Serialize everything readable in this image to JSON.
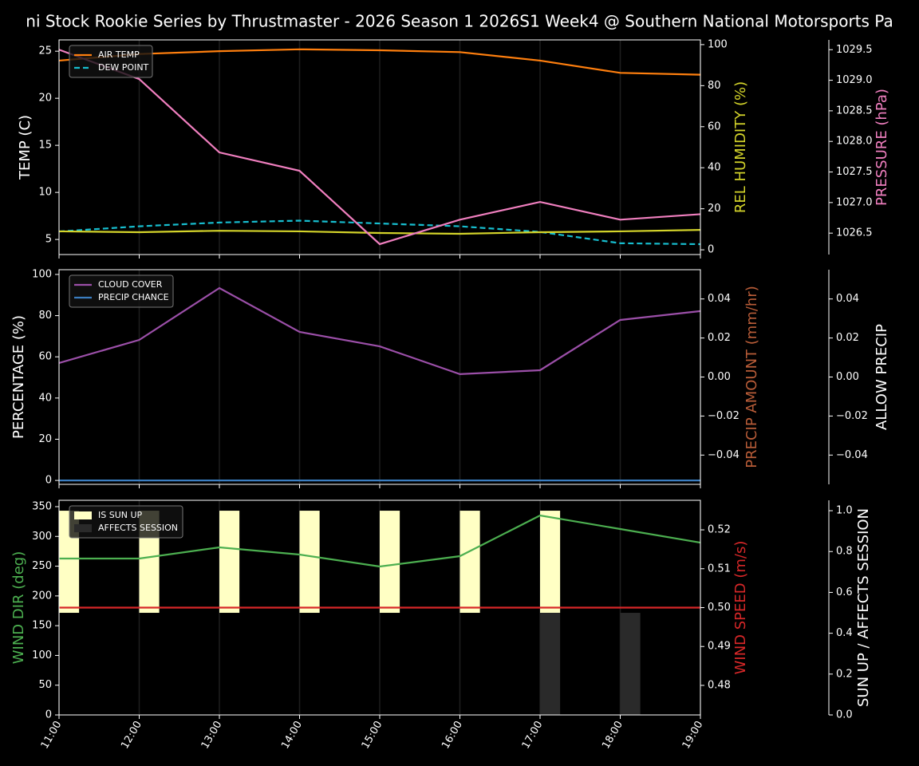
{
  "chart_data": [
    {
      "type": "line",
      "title": "ni Stock Rookie Series by Thrustmaster - 2026 Season 1 2026S1 Week4 @ Southern National Motorsports Pa",
      "y_label": "TEMP (C)",
      "y2_label": "REL HUMIDITY (%)",
      "y3_label": "PRESSURE (hPa)",
      "y_label_color": "#ffffff",
      "y2_label_color": "#d4d42a",
      "y3_label_color": "#f07fbf",
      "ylim": [
        3.4,
        26.2
      ],
      "yticks": [
        5,
        10,
        15,
        20,
        25
      ],
      "y2lim": [
        -2.3,
        102.3
      ],
      "y2ticks": [
        0,
        20,
        40,
        60,
        80,
        100
      ],
      "y3lim": [
        1026.15,
        1029.66
      ],
      "y3ticks": [
        1026.5,
        {
          "value": 1027,
          "label": "1027.0"
        },
        1027.5,
        {
          "value": 1028,
          "label": "1028.0"
        },
        1028.5,
        {
          "value": 1029,
          "label": "1029.0"
        },
        1029.5
      ],
      "legend": "upper left",
      "series": [
        {
          "name": "AIR TEMP",
          "color": "#ff7f0e",
          "axis": "y",
          "values": [
            24.0,
            24.7,
            25.0,
            25.2,
            25.1,
            24.9,
            24.0,
            22.7,
            22.5
          ]
        },
        {
          "name": "DEW POINT",
          "color": "#17becf",
          "axis": "y",
          "dashed": true,
          "values": [
            5.85,
            6.4,
            6.8,
            7.0,
            6.7,
            6.4,
            5.8,
            4.6,
            4.5
          ]
        },
        {
          "color": "#d4d42a",
          "axis": "y2",
          "values": [
            9.0,
            8.6,
            9.3,
            9.0,
            8.2,
            7.8,
            8.6,
            9.0,
            9.7
          ]
        },
        {
          "color": "#f07fbf",
          "axis": "y3",
          "values": [
            1029.5,
            1029.02,
            1027.82,
            1027.52,
            1026.32,
            1026.72,
            1027.01,
            1026.72,
            1026.81
          ]
        }
      ]
    },
    {
      "type": "line",
      "y_label": "PERCENTAGE (%)",
      "y2_label": "PRECIP AMOUNT (mm/hr)",
      "y3_label": "ALLOW PRECIP",
      "y_label_color": "#ffffff",
      "y2_label_color": "#b85c38",
      "y3_label_color": "#ffffff",
      "ylim": [
        -1.9,
        102.3
      ],
      "yticks": [
        0,
        20,
        40,
        60,
        80,
        100
      ],
      "y2lim": [
        -0.055,
        0.055
      ],
      "y2ticks": [
        {
          "value": -0.04,
          "label": "−0.04"
        },
        {
          "value": -0.02,
          "label": "−0.02"
        },
        {
          "value": 0,
          "label": "0.00"
        },
        0.02,
        0.04
      ],
      "y3lim": [
        -0.055,
        0.055
      ],
      "y3ticks": [
        {
          "value": -0.04,
          "label": "−0.04"
        },
        {
          "value": -0.02,
          "label": "−0.02"
        },
        {
          "value": 0,
          "label": "0.00"
        },
        0.02,
        0.04
      ],
      "legend": "upper left",
      "series": [
        {
          "name": "CLOUD COVER",
          "color": "#9b4fa8",
          "axis": "y",
          "values": [
            57,
            68.2,
            93.4,
            72.1,
            65.1,
            51.6,
            53.5,
            77.9,
            82.2
          ]
        },
        {
          "name": "PRECIP CHANCE",
          "color": "#3b7dc0",
          "axis": "y",
          "values": [
            0,
            0,
            0,
            0,
            0,
            0,
            0,
            0,
            0
          ]
        }
      ]
    },
    {
      "type": "line",
      "categories": [
        "11:00",
        "12:00",
        "13:00",
        "14:00",
        "15:00",
        "16:00",
        "17:00",
        "18:00",
        "19:00"
      ],
      "y_label": "WIND DIR (deg)",
      "y2_label": "WIND SPEED (m/s)",
      "y3_label": "SUN UP / AFFECTS SESSION",
      "y_label_color": "#4caf50",
      "y2_label_color": "#d62728",
      "y3_label_color": "#ffffff",
      "ylim": [
        0,
        360.7
      ],
      "yticks": [
        0,
        50,
        100,
        150,
        200,
        250,
        300,
        350
      ],
      "y2lim": [
        0.4724,
        0.5276
      ],
      "y2ticks": [
        0.48,
        0.49,
        {
          "value": 0.5,
          "label": "0.50"
        },
        0.51,
        0.52
      ],
      "y3lim": [
        0,
        1.051
      ],
      "y3ticks": [
        {
          "value": 0,
          "label": "0.0"
        },
        0.2,
        0.4,
        0.6,
        0.8,
        {
          "value": 1,
          "label": "1.0"
        }
      ],
      "legend": "upper left",
      "series": [
        {
          "name": "IS SUN UP",
          "color": "#ffffc4",
          "axis": "y3",
          "kind": "bar",
          "base": 0.5,
          "values": [
            0.5,
            0.5,
            0.5,
            0.5,
            0.5,
            0.5,
            0.5,
            0,
            0
          ]
        },
        {
          "name": "AFFECTS SESSION",
          "color": "#2a2a2a",
          "axis": "y3",
          "kind": "bar",
          "base": 0,
          "values": [
            0,
            0,
            0,
            0,
            0,
            0,
            0.5,
            0.5,
            0
          ]
        },
        {
          "color": "#4caf50",
          "axis": "y",
          "values": [
            262.8,
            262.8,
            281.6,
            269.5,
            249.4,
            266.8,
            335.2,
            312.4,
            289.6
          ]
        },
        {
          "color": "#d62728",
          "axis": "y2",
          "values": [
            0.5,
            0.5,
            0.5,
            0.5,
            0.5,
            0.5,
            0.5,
            0.5,
            0.5
          ]
        }
      ]
    }
  ]
}
